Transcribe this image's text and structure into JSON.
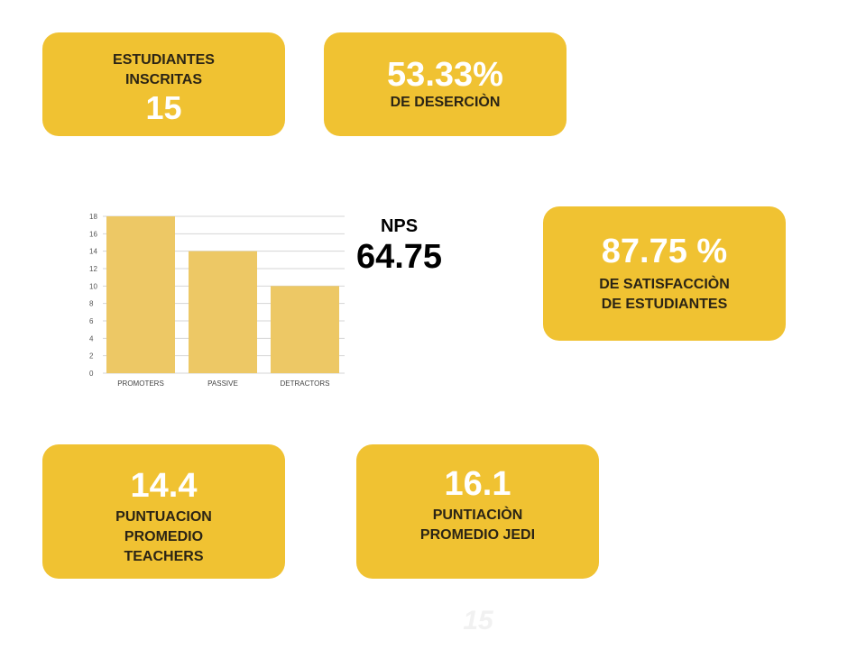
{
  "cards": {
    "inscritas": {
      "label_line1": "ESTUDIANTES",
      "label_line2": "INSCRITAS",
      "value": "15"
    },
    "desercion": {
      "value": "53.33%",
      "label": "DE DESERCIÒN"
    },
    "satisfaccion": {
      "value": "87.75 %",
      "label_line1": "DE SATISFACCIÒN",
      "label_line2": "DE ESTUDIANTES"
    },
    "teachers": {
      "value": "14.4",
      "label_line1": "PUNTUACION",
      "label_line2": "PROMEDIO",
      "label_line3": "TEACHERS"
    },
    "jedi": {
      "value": "16.1",
      "label_line1": "PUNTIACIÒN",
      "label_line2": "PROMEDIO JEDI"
    }
  },
  "nps": {
    "label": "NPS",
    "value": "64.75"
  },
  "ghost_number": "15",
  "colors": {
    "card": "#f0c232",
    "bar": "#edc865",
    "value_text": "#ffffff"
  },
  "chart_data": {
    "type": "bar",
    "categories": [
      "PROMOTERS",
      "PASSIVE",
      "DETRACTORS"
    ],
    "values": [
      18,
      14,
      10
    ],
    "ylim": [
      0,
      18
    ],
    "yticks": [
      "0",
      "2",
      "4",
      "6",
      "8",
      "10",
      "12",
      "14",
      "16",
      "18"
    ],
    "title": "",
    "xlabel": "",
    "ylabel": "",
    "grid": true
  }
}
